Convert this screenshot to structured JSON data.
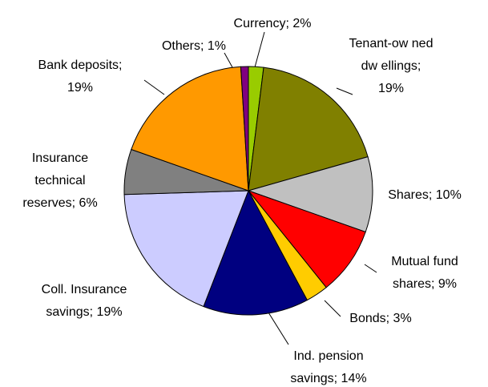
{
  "chart_data": {
    "type": "pie",
    "values": [
      2,
      19,
      10,
      9,
      3,
      14,
      19,
      6,
      19,
      1
    ],
    "value_labels": [
      "Currency; 2%",
      "Tenant-ow ned\ndw ellings;\n19%",
      "Shares; 10%",
      "Mutual fund\nshares; 9%",
      "Bonds; 3%",
      "Ind. pension\nsavings; 14%",
      "Coll. Insurance\nsavings; 19%",
      "Insurance\ntechnical\nreserves; 6%",
      "Bank deposits;\n19%",
      "Others; 1%"
    ],
    "colors": [
      "#99cc00",
      "#808000",
      "#c0c0c0",
      "#ff0000",
      "#ffcc00",
      "#000080",
      "#ccccff",
      "#808080",
      "#ff9900",
      "#800080"
    ]
  }
}
